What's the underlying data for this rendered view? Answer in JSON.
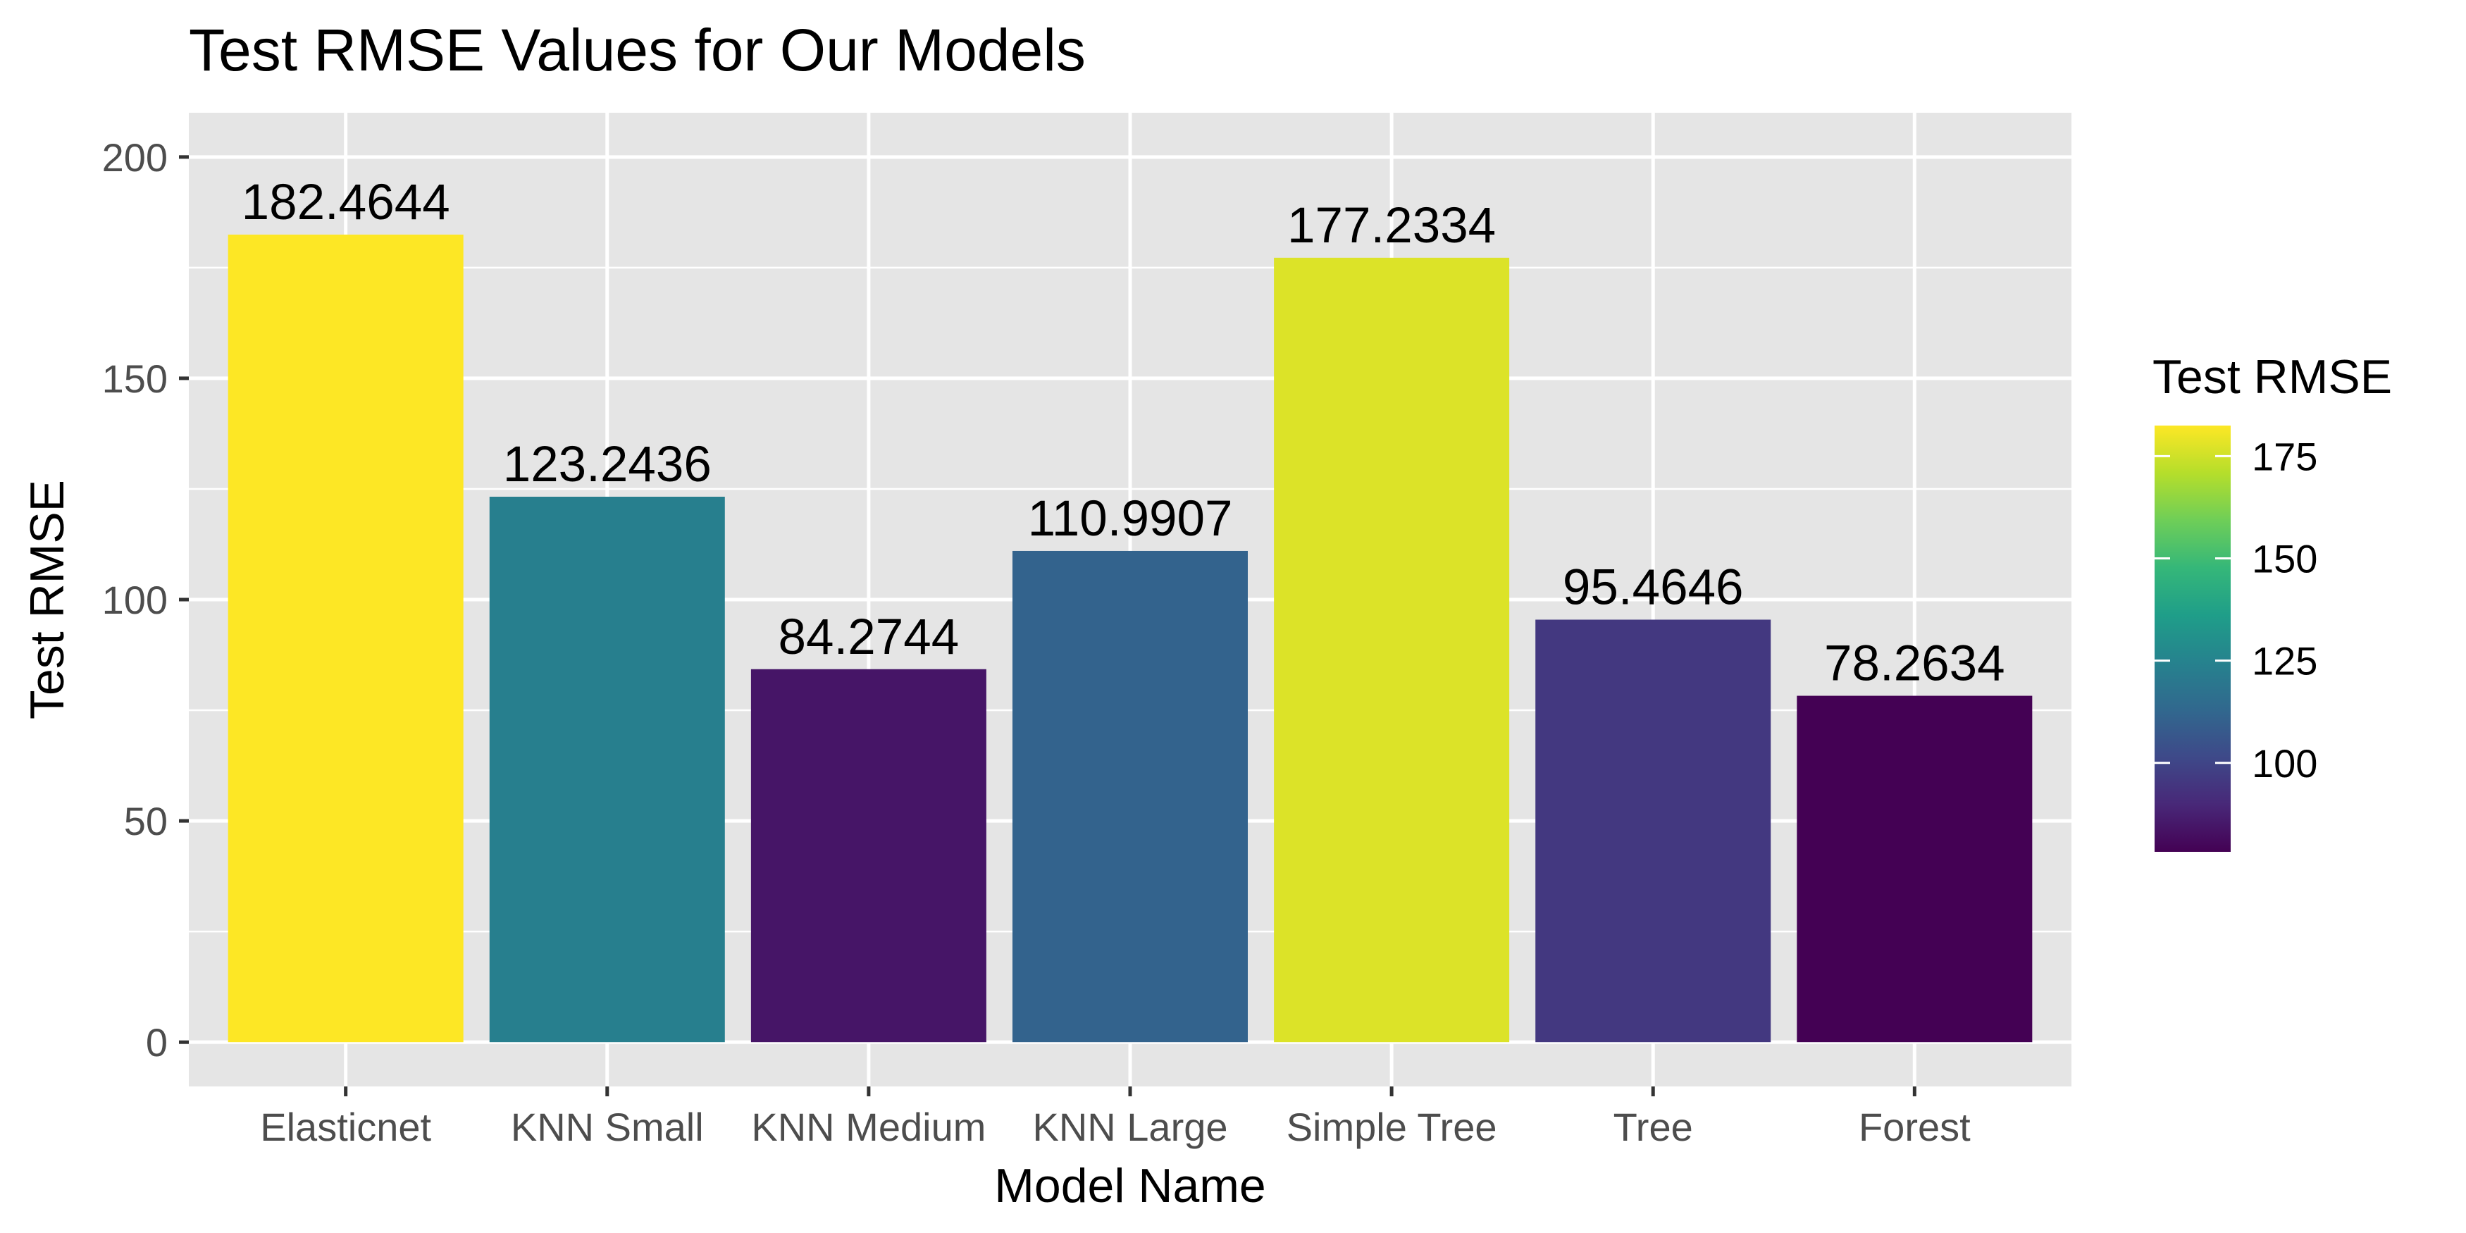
{
  "chart_data": {
    "type": "bar",
    "title": "Test RMSE Values for Our Models",
    "xlabel": "Model Name",
    "ylabel": "Test RMSE",
    "categories": [
      "Elasticnet",
      "KNN Small",
      "KNN Medium",
      "KNN Large",
      "Simple Tree",
      "Tree",
      "Forest"
    ],
    "values": [
      182.4644,
      123.2436,
      84.2744,
      110.9907,
      177.2334,
      95.4646,
      78.2634
    ],
    "data_labels": [
      "182.4644",
      "123.2436",
      "84.2744",
      "110.9907",
      "177.2334",
      "95.4646",
      "78.2634"
    ],
    "ylim": [
      0,
      200
    ],
    "yticks": [
      0,
      50,
      100,
      150,
      200
    ],
    "ytick_labels": [
      "0",
      "50",
      "100",
      "150",
      "200"
    ],
    "grid": true,
    "fill_scale": "viridis",
    "legend": {
      "title": "Test RMSE",
      "placement": "right",
      "range": [
        78.2634,
        182.4644
      ],
      "ticks": [
        100,
        125,
        150,
        175
      ],
      "tick_labels": [
        "100",
        "125",
        "150",
        "175"
      ]
    },
    "colors": {
      "panel_background": "#e5e5e5",
      "gridline": "#ffffff",
      "viridis_stops": [
        "#440154",
        "#482878",
        "#3e4989",
        "#31688e",
        "#26828e",
        "#1f9e89",
        "#35b779",
        "#6ece58",
        "#b5de2b",
        "#fde725"
      ]
    }
  }
}
